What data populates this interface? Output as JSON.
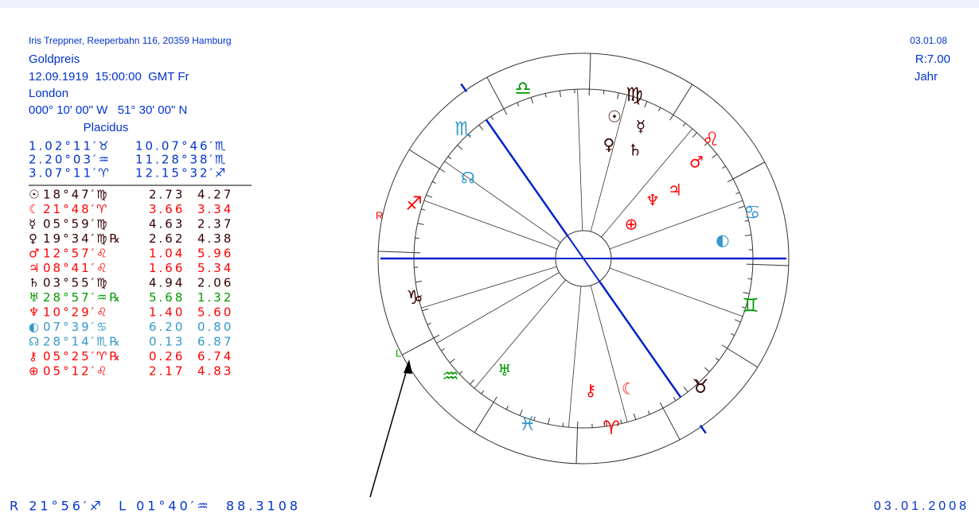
{
  "header": {
    "source": "Iris Treppner, Reeperbahn 116, 20359 Hamburg",
    "title": "Goldpreis",
    "datetime": "12.09.1919  15:00:00  GMT Fr",
    "place": "London",
    "coords": "000° 10' 00\" W   51° 30' 00\" N",
    "house_system": "Placidus"
  },
  "top_right": {
    "date": "03.01.08",
    "ratio": "R:7.00",
    "period": "Jahr"
  },
  "houses": [
    [
      "1.02°11′♉",
      "10.07°46′♏"
    ],
    [
      "2.20°03′♒",
      "11.28°38′♏"
    ],
    [
      "3.07°11′♈",
      "12.15°32′♐"
    ]
  ],
  "planets": [
    [
      "☉",
      "18°47′♍",
      "2.73",
      "4.27"
    ],
    [
      "☾",
      "21°48′♈",
      "3.66",
      "3.34"
    ],
    [
      "☿",
      "05°59′♍",
      "4.63",
      "2.37"
    ],
    [
      "♀",
      "19°34′♍℞",
      "2.62",
      "4.38"
    ],
    [
      "♂",
      "12°57′♌",
      "1.04",
      "5.96"
    ],
    [
      "♃",
      "08°41′♌",
      "1.66",
      "5.34"
    ],
    [
      "♄",
      "03°55′♍",
      "4.94",
      "2.06"
    ],
    [
      "♅",
      "28°57′♒℞",
      "5.68",
      "1.32"
    ],
    [
      "♆",
      "10°29′♌",
      "1.40",
      "5.60"
    ],
    [
      "◐",
      "07°39′♋",
      "6.20",
      "0.80"
    ],
    [
      "☊",
      "28°14′♏℞",
      "0.13",
      "6.87"
    ],
    [
      "⚷",
      "05°25′♈℞",
      "0.26",
      "6.74"
    ],
    [
      "⊕",
      "05°12′♌",
      "2.17",
      "4.83"
    ]
  ],
  "wheel": {
    "signs": [
      "♎",
      "♍",
      "♌",
      "♋",
      "♊",
      "♉",
      "♈",
      "♓",
      "♒",
      "♑",
      "♐",
      "♏"
    ],
    "planets": [
      "☉",
      "☿",
      "♀",
      "♄",
      "♂",
      "♃",
      "♆",
      "⊕",
      "◐",
      "☊",
      "♅",
      "⚷",
      "☾"
    ],
    "r_label": "R",
    "l_label": "L"
  },
  "footer": {
    "summary": "R 21°56′♐  L 01°40′♒  88.3108",
    "date": "03.01.2008"
  }
}
